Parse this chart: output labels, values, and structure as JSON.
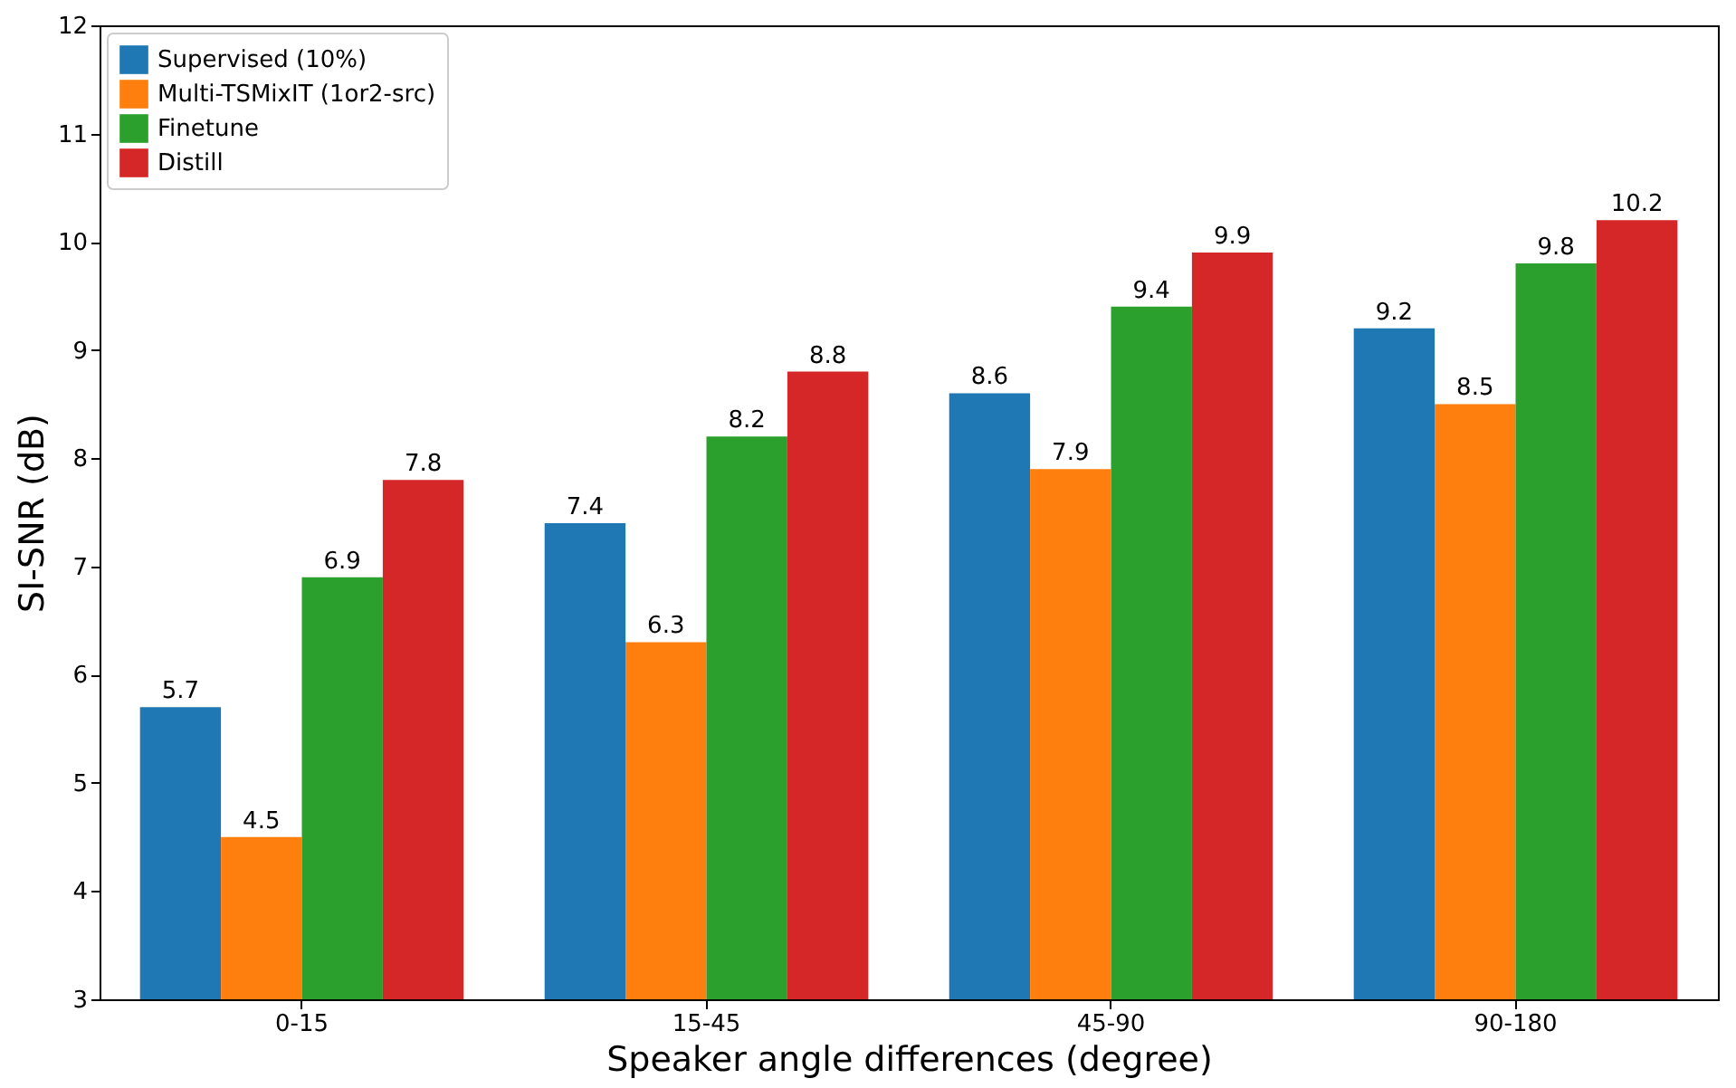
{
  "chart_data": {
    "type": "bar",
    "xlabel": "Speaker angle differences (degree)",
    "ylabel": "SI-SNR (dB)",
    "categories": [
      "0-15",
      "15-45",
      "45-90",
      "90-180"
    ],
    "series": [
      {
        "name": "Supervised (10%)",
        "color": "#1f77b4",
        "values": [
          5.7,
          7.4,
          8.6,
          9.2
        ]
      },
      {
        "name": "Multi-TSMixIT (1or2-src)",
        "color": "#ff7f0e",
        "values": [
          4.5,
          6.3,
          7.9,
          8.5
        ]
      },
      {
        "name": "Finetune",
        "color": "#2ca02c",
        "values": [
          6.9,
          8.2,
          9.4,
          9.8
        ]
      },
      {
        "name": "Distill",
        "color": "#d62728",
        "values": [
          7.8,
          8.8,
          9.9,
          10.2
        ]
      }
    ],
    "ylim": [
      3,
      12
    ],
    "yticks": [
      3,
      4,
      5,
      6,
      7,
      8,
      9,
      10,
      11,
      12
    ],
    "data_labels": true,
    "grid": false,
    "legend": "top left"
  }
}
